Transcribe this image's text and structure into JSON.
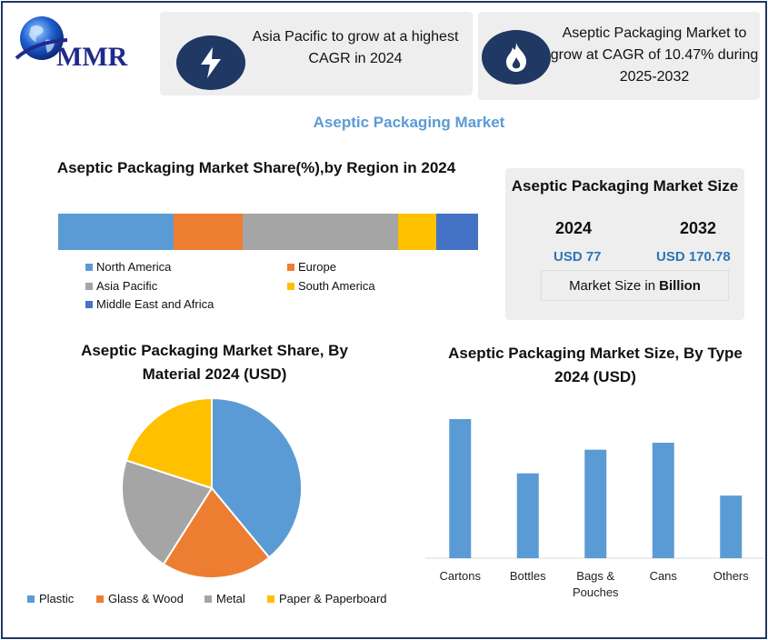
{
  "brand": {
    "logo_text": "MMR"
  },
  "info_boxes": [
    {
      "icon": "lightning-bolt-icon",
      "text": "Asia Pacific to grow at a highest CAGR in 2024"
    },
    {
      "icon": "flame-icon",
      "text": "Aseptic Packaging Market to grow at CAGR of 10.47% during 2025-2032"
    }
  ],
  "main_title": "Aseptic Packaging Market",
  "colors": {
    "blue": "#5b9bd5",
    "orange": "#ed7d31",
    "gray": "#a5a5a5",
    "yellow": "#ffc000",
    "dark_blue": "#4472c4",
    "navy": "#1f3864",
    "value_blue": "#2e75b6"
  },
  "market_size": {
    "title": "Aseptic Packaging Market Size",
    "year_1": "2024",
    "year_2": "2032",
    "value_1": "USD 77",
    "value_2": "USD 170.78",
    "unit_prefix": "Market Size in",
    "unit_bold": "Billion"
  },
  "chart_data": [
    {
      "type": "bar",
      "stacked": true,
      "orientation": "horizontal",
      "title": "Aseptic Packaging Market Share(%),by Region in 2024",
      "categories": [
        "2024"
      ],
      "series": [
        {
          "name": "North America",
          "values": [
            27.5
          ],
          "color": "#5b9bd5"
        },
        {
          "name": "Europe",
          "values": [
            16.5
          ],
          "color": "#ed7d31"
        },
        {
          "name": "Asia Pacific",
          "values": [
            37
          ],
          "color": "#a5a5a5"
        },
        {
          "name": "South America",
          "values": [
            9
          ],
          "color": "#ffc000"
        },
        {
          "name": "Middle East and Africa",
          "values": [
            10
          ],
          "color": "#4472c4"
        }
      ],
      "legend_position": "bottom"
    },
    {
      "type": "pie",
      "title": "Aseptic Packaging Market Share, By Material 2024  (USD)",
      "categories": [
        "Plastic",
        "Glass & Wood",
        "Metal",
        "Paper & Paperboard"
      ],
      "values": [
        39,
        20,
        21,
        20
      ],
      "colors": [
        "#5b9bd5",
        "#ed7d31",
        "#a5a5a5",
        "#ffc000"
      ],
      "legend_position": "bottom"
    },
    {
      "type": "bar",
      "title": "Aseptic Packaging Market  Size, By Type 2024  (USD)",
      "categories": [
        "Cartons",
        "Bottles",
        "Bags & Pouches",
        "Cans",
        "Others"
      ],
      "values": [
        100,
        61,
        78,
        83,
        45
      ],
      "ylim": [
        0,
        100
      ],
      "color": "#5b9bd5",
      "grid": false
    }
  ]
}
